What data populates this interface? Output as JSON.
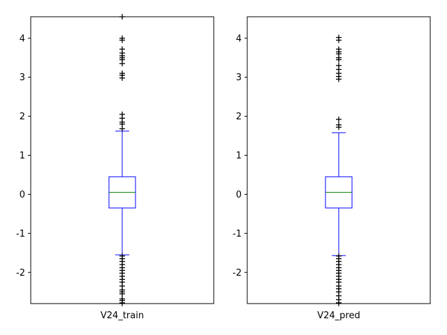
{
  "chart_data": [
    {
      "type": "box",
      "categories": [
        "V24_train"
      ],
      "ylim": [
        -2.8,
        4.55
      ],
      "yticks": [
        4,
        3,
        2,
        1,
        0,
        -1,
        -2
      ],
      "grid": false,
      "colors": {
        "box": "#0000ff",
        "median": "#008000",
        "flier": "#000000"
      },
      "box": {
        "q1": -0.35,
        "median": 0.05,
        "q3": 0.45,
        "whisker_low": -1.55,
        "whisker_high": 1.62
      },
      "outliers": [
        4.55,
        4.0,
        3.95,
        3.72,
        3.62,
        3.55,
        3.5,
        3.45,
        3.35,
        3.1,
        3.05,
        2.98,
        2.05,
        1.95,
        1.85,
        1.8,
        1.68,
        -1.58,
        -1.65,
        -1.72,
        -1.8,
        -1.88,
        -1.95,
        -2.02,
        -2.1,
        -2.18,
        -2.25,
        -2.35,
        -2.45,
        -2.5,
        -2.55,
        -2.68,
        -2.72,
        -2.78
      ]
    },
    {
      "type": "box",
      "categories": [
        "V24_pred"
      ],
      "ylim": [
        -2.8,
        4.55
      ],
      "yticks": [
        4,
        3,
        2,
        1,
        0,
        -1,
        -2
      ],
      "grid": false,
      "colors": {
        "box": "#0000ff",
        "median": "#008000",
        "flier": "#000000"
      },
      "box": {
        "q1": -0.35,
        "median": 0.05,
        "q3": 0.45,
        "whisker_low": -1.57,
        "whisker_high": 1.58
      },
      "outliers": [
        4.02,
        3.95,
        3.72,
        3.65,
        3.6,
        3.5,
        3.45,
        3.3,
        3.2,
        3.1,
        3.02,
        2.95,
        1.92,
        1.78,
        1.72,
        -1.58,
        -1.65,
        -1.72,
        -1.8,
        -1.88,
        -1.95,
        -2.02,
        -2.1,
        -2.18,
        -2.25,
        -2.35,
        -2.42,
        -2.5,
        -2.6,
        -2.7,
        -2.78
      ]
    }
  ]
}
